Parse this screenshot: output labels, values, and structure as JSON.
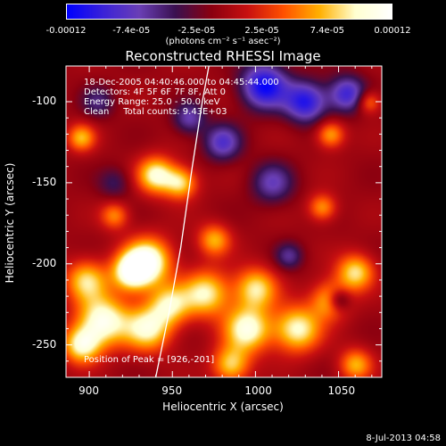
{
  "colorbar": {
    "ticks": [
      "-0.00012",
      "-7.4e-05",
      "-2.5e-05",
      "2.5e-05",
      "7.4e-05",
      "0.00012"
    ],
    "unit": "(photons cm⁻² s⁻¹ asec⁻²)",
    "colors": [
      "#0000ff",
      "#3b22d8",
      "#6a3fb6",
      "#3a1050",
      "#8a0010",
      "#c81010",
      "#ff5000",
      "#ffb000",
      "#ffffd0",
      "#ffffff"
    ]
  },
  "chart_data": {
    "type": "heatmap",
    "title": "Reconstructed RHESSI Image",
    "xlabel": "Heliocentric X (arcsec)",
    "ylabel": "Heliocentric Y (arcsec)",
    "xlim": [
      886,
      1076
    ],
    "ylim": [
      -270,
      -78
    ],
    "x_ticks": [
      "900",
      "950",
      "1000",
      "1050"
    ],
    "y_ticks": [
      "-100",
      "-150",
      "-200",
      "-250"
    ],
    "x_tick_values": [
      900,
      950,
      1000,
      1050
    ],
    "y_tick_values": [
      -100,
      -150,
      -200,
      -250
    ],
    "color_range": [
      -0.00012,
      0.00012
    ],
    "annotations": [
      "18-Dec-2005 04:40:46.000 to 04:45:44.000",
      "Detectors: 4F 5F 6F 7F 8F, Att 0",
      "Energy Range: 25.0 - 50.0 keV",
      "Clean     Total counts: 9.43E+03"
    ],
    "peak_label": "Position of Peak = [926,-201]",
    "peak": [
      926,
      -201
    ],
    "limb_curve": [
      [
        940,
        -270
      ],
      [
        948,
        -230
      ],
      [
        955,
        -190
      ],
      [
        962,
        -140
      ],
      [
        968,
        -100
      ],
      [
        972,
        -78
      ]
    ],
    "blobs": [
      {
        "x": 935,
        "y": -198,
        "amp": 1.0,
        "s": 10
      },
      {
        "x": 925,
        "y": -205,
        "amp": 0.9,
        "s": 8
      },
      {
        "x": 898,
        "y": -210,
        "amp": 0.7,
        "s": 9
      },
      {
        "x": 908,
        "y": -235,
        "amp": 0.95,
        "s": 11
      },
      {
        "x": 935,
        "y": -240,
        "amp": 0.8,
        "s": 10
      },
      {
        "x": 895,
        "y": -250,
        "amp": 0.8,
        "s": 8
      },
      {
        "x": 948,
        "y": -225,
        "amp": 0.7,
        "s": 9
      },
      {
        "x": 970,
        "y": -218,
        "amp": 0.8,
        "s": 10
      },
      {
        "x": 1000,
        "y": -215,
        "amp": 0.75,
        "s": 9
      },
      {
        "x": 995,
        "y": -240,
        "amp": 0.9,
        "s": 10
      },
      {
        "x": 1025,
        "y": -240,
        "amp": 0.85,
        "s": 10
      },
      {
        "x": 1060,
        "y": -205,
        "amp": 0.75,
        "s": 8
      },
      {
        "x": 1045,
        "y": -222,
        "amp": 0.7,
        "s": 8
      },
      {
        "x": 940,
        "y": -145,
        "amp": 0.85,
        "s": 8
      },
      {
        "x": 955,
        "y": -150,
        "amp": 0.7,
        "s": 7
      },
      {
        "x": 975,
        "y": -185,
        "amp": 0.6,
        "s": 7
      },
      {
        "x": 895,
        "y": -122,
        "amp": 0.6,
        "s": 6
      },
      {
        "x": 1045,
        "y": -120,
        "amp": 0.6,
        "s": 6
      },
      {
        "x": 1040,
        "y": -165,
        "amp": 0.55,
        "s": 6
      },
      {
        "x": 1068,
        "y": -100,
        "amp": 0.5,
        "s": 5
      },
      {
        "x": 985,
        "y": -262,
        "amp": 0.7,
        "s": 8
      },
      {
        "x": 1060,
        "y": -262,
        "amp": 0.6,
        "s": 7
      },
      {
        "x": 915,
        "y": -170,
        "amp": 0.5,
        "s": 6
      },
      {
        "x": 1005,
        "y": -90,
        "amp": -0.9,
        "s": 10
      },
      {
        "x": 1030,
        "y": -100,
        "amp": -0.8,
        "s": 9
      },
      {
        "x": 1055,
        "y": -95,
        "amp": -0.7,
        "s": 8
      },
      {
        "x": 980,
        "y": -125,
        "amp": -0.6,
        "s": 8
      },
      {
        "x": 1010,
        "y": -150,
        "amp": -0.5,
        "s": 9
      },
      {
        "x": 960,
        "y": -110,
        "amp": -0.5,
        "s": 7
      },
      {
        "x": 1050,
        "y": -222,
        "amp": -0.6,
        "s": 5
      },
      {
        "x": 1020,
        "y": -195,
        "amp": -0.4,
        "s": 6
      },
      {
        "x": 905,
        "y": -100,
        "amp": -0.35,
        "s": 7
      },
      {
        "x": 915,
        "y": -150,
        "amp": -0.3,
        "s": 7
      }
    ]
  },
  "timestamp": "8-Jul-2013 04:58"
}
